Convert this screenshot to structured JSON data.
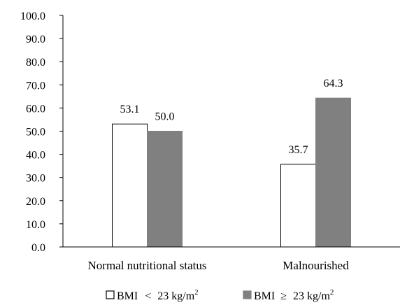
{
  "chart_data": {
    "type": "bar",
    "categories": [
      "Normal nutritional status",
      "Malnourished"
    ],
    "series": [
      {
        "name": "BMI < 23 kg/m²",
        "legend_base": "BMI",
        "legend_relation": "<",
        "legend_value": "23 kg/m",
        "legend_sup": "2",
        "values": [
          53.1,
          35.7
        ],
        "color": "#ffffff",
        "stroke": "#000000"
      },
      {
        "name": "BMI ≥ 23 kg/m²",
        "legend_base": "BMI",
        "legend_relation": "≥",
        "legend_value": "23 kg/m",
        "legend_sup": "2",
        "values": [
          50.0,
          64.3
        ],
        "color": "#808080",
        "stroke": "#808080"
      }
    ],
    "ylim": [
      0,
      100
    ],
    "yticks": [
      "0.0",
      "10.0",
      "20.0",
      "30.0",
      "40.0",
      "50.0",
      "60.0",
      "70.0",
      "80.0",
      "90.0",
      "100.0"
    ],
    "data_labels": [
      [
        "53.1",
        "35.7"
      ],
      [
        "50.0",
        "64.3"
      ]
    ],
    "title": "",
    "xlabel": "",
    "ylabel": "",
    "grid": false,
    "legend_position": "bottom"
  }
}
